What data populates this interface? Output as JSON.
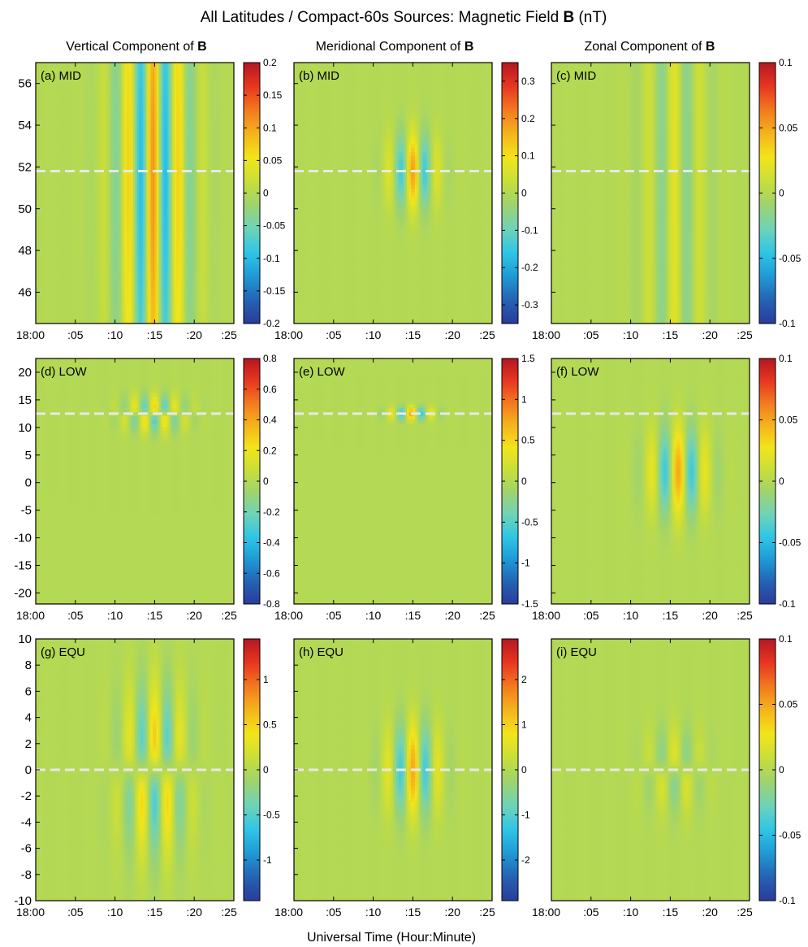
{
  "figure": {
    "title": "All Latitudes / Compact-60s Sources: Magnetic Field B (nT)",
    "title_parts": {
      "pre": "All Latitudes / Compact-60s Sources: Magnetic Field ",
      "bold": "B",
      "post": " (nT)"
    },
    "xlabel": "Universal Time (Hour:Minute)",
    "columns": [
      {
        "pre": "Vertical Component of ",
        "bold": "B"
      },
      {
        "pre": "Meridional Component of ",
        "bold": "B"
      },
      {
        "pre": "Zonal Component of ",
        "bold": "B"
      }
    ]
  },
  "colors": {
    "colormap": [
      "#2a3c9b",
      "#2463b5",
      "#1f9ad6",
      "#2fc6e6",
      "#6fd3b8",
      "#9ed36f",
      "#c9de3a",
      "#f2e51a",
      "#f5b41c",
      "#f27a1f",
      "#e8361f",
      "#b41722"
    ],
    "background": "#8fd17b",
    "dashed_line": "#e8e8e8"
  },
  "chart_data": [
    {
      "type": "heatmap",
      "panel": "(a) MID",
      "row": "MID",
      "component": "Vertical",
      "x_ticks": [
        "18:00",
        ":05",
        ":10",
        ":15",
        ":20",
        ":25"
      ],
      "xlim_min": [
        0,
        25
      ],
      "ylim": [
        44.5,
        57
      ],
      "y_ticks": [
        46,
        48,
        50,
        52,
        54,
        56
      ],
      "dashed_y": 51.8,
      "clim": [
        -0.2,
        0.2
      ],
      "cbar_ticks": [
        -0.2,
        -0.15,
        -0.1,
        -0.05,
        0,
        0.05,
        0.1,
        0.15,
        0.2
      ],
      "pattern": {
        "t_center": 14.8,
        "t_halfwidth": 5.5,
        "period_min": 3.2,
        "antisymmetric": false,
        "y_center": 51.8,
        "y_width": 14,
        "amplitude": 0.2
      }
    },
    {
      "type": "heatmap",
      "panel": "(b) MID",
      "row": "MID",
      "component": "Meridional",
      "x_ticks": [
        "18:00",
        ":05",
        ":10",
        ":15",
        ":20",
        ":25"
      ],
      "xlim_min": [
        0,
        25
      ],
      "ylim": [
        44.5,
        57
      ],
      "y_ticks": [
        46,
        48,
        50,
        52,
        54,
        56
      ],
      "dashed_y": 51.8,
      "clim": [
        -0.35,
        0.35
      ],
      "cbar_ticks": [
        -0.3,
        -0.2,
        -0.1,
        0,
        0.1,
        0.2,
        0.3
      ],
      "pattern": {
        "t_center": 15,
        "t_halfwidth": 3.5,
        "period_min": 3.2,
        "antisymmetric": false,
        "y_center": 51.8,
        "y_width": 1.8,
        "amplitude": 0.33
      }
    },
    {
      "type": "heatmap",
      "panel": "(c) MID",
      "row": "MID",
      "component": "Zonal",
      "x_ticks": [
        "18:00",
        ":05",
        ":10",
        ":15",
        ":20",
        ":25"
      ],
      "xlim_min": [
        0,
        25
      ],
      "ylim": [
        44.5,
        57
      ],
      "y_ticks": [
        46,
        48,
        50,
        52,
        54,
        56
      ],
      "dashed_y": 51.8,
      "clim": [
        -0.1,
        0.1
      ],
      "cbar_ticks": [
        -0.1,
        -0.05,
        0,
        0.05,
        0.1
      ],
      "pattern": {
        "t_center": 15.5,
        "t_halfwidth": 5,
        "period_min": 3.3,
        "antisymmetric": false,
        "y_center": 51.8,
        "y_width": 40,
        "amplitude": 0.035
      }
    },
    {
      "type": "heatmap",
      "panel": "(d) LOW",
      "row": "LOW",
      "component": "Vertical",
      "x_ticks": [
        "18:00",
        ":05",
        ":10",
        ":15",
        ":20",
        ":25"
      ],
      "xlim_min": [
        0,
        25
      ],
      "ylim": [
        -22,
        22.5
      ],
      "y_ticks": [
        -20,
        -15,
        -10,
        -5,
        0,
        5,
        10,
        15,
        20
      ],
      "dashed_y": 12.5,
      "clim": [
        -0.8,
        0.8
      ],
      "cbar_ticks": [
        -0.8,
        -0.6,
        -0.4,
        -0.2,
        0,
        0.2,
        0.4,
        0.6,
        0.8
      ],
      "pattern": {
        "t_center": 15,
        "t_halfwidth": 4.5,
        "period_min": 2.6,
        "antisymmetric": true,
        "y_center": 12.5,
        "y_width": 2.2,
        "amplitude": 0.7
      }
    },
    {
      "type": "heatmap",
      "panel": "(e) LOW",
      "row": "LOW",
      "component": "Meridional",
      "x_ticks": [
        "18:00",
        ":05",
        ":10",
        ":15",
        ":20",
        ":25"
      ],
      "xlim_min": [
        0,
        25
      ],
      "ylim": [
        -22,
        22.5
      ],
      "y_ticks": [
        -20,
        -15,
        -10,
        -5,
        0,
        5,
        10,
        15,
        20
      ],
      "dashed_y": 12.5,
      "clim": [
        -1.5,
        1.5
      ],
      "cbar_ticks": [
        -1.5,
        -1,
        -0.5,
        0,
        0.5,
        1,
        1.5
      ],
      "pattern": {
        "t_center": 14.8,
        "t_halfwidth": 3.5,
        "period_min": 2.6,
        "antisymmetric": false,
        "y_center": 12.5,
        "y_width": 1.2,
        "amplitude": 1.4
      }
    },
    {
      "type": "heatmap",
      "panel": "(f) LOW",
      "row": "LOW",
      "component": "Zonal",
      "x_ticks": [
        "18:00",
        ":05",
        ":10",
        ":15",
        ":20",
        ":25"
      ],
      "xlim_min": [
        0,
        25
      ],
      "ylim": [
        -22,
        22.5
      ],
      "y_ticks": [
        -20,
        -15,
        -10,
        -5,
        0,
        5,
        10,
        15,
        20
      ],
      "dashed_y": 12.5,
      "clim": [
        -0.1,
        0.1
      ],
      "cbar_ticks": [
        -0.1,
        -0.05,
        0,
        0.05,
        0.1
      ],
      "pattern": {
        "t_center": 16,
        "t_halfwidth": 4.5,
        "period_min": 3.5,
        "antisymmetric": false,
        "y_center": 2,
        "y_width": 8,
        "amplitude": 0.09
      }
    },
    {
      "type": "heatmap",
      "panel": "(g) EQU",
      "row": "EQU",
      "component": "Vertical",
      "x_ticks": [
        "18:00",
        ":05",
        ":10",
        ":15",
        ":20",
        ":25"
      ],
      "xlim_min": [
        0,
        25
      ],
      "ylim": [
        -10,
        10
      ],
      "y_ticks": [
        -10,
        -8,
        -6,
        -4,
        -2,
        0,
        2,
        4,
        6,
        8,
        10
      ],
      "dashed_y": 0,
      "clim": [
        -1.45,
        1.45
      ],
      "cbar_ticks": [
        -1,
        -0.5,
        0,
        0.5,
        1
      ],
      "pattern": {
        "t_center": 15,
        "t_halfwidth": 5,
        "period_min": 3.3,
        "antisymmetric": true,
        "y_center": 0,
        "y_width": 4.2,
        "amplitude": 1.35
      }
    },
    {
      "type": "heatmap",
      "panel": "(h) EQU",
      "row": "EQU",
      "component": "Meridional",
      "x_ticks": [
        "18:00",
        ":05",
        ":10",
        ":15",
        ":20",
        ":25"
      ],
      "xlim_min": [
        0,
        25
      ],
      "ylim": [
        -10,
        10
      ],
      "y_ticks": [
        -10,
        -8,
        -6,
        -4,
        -2,
        0,
        2,
        4,
        6,
        8,
        10
      ],
      "dashed_y": 0,
      "clim": [
        -2.9,
        2.9
      ],
      "cbar_ticks": [
        -2,
        -1,
        0,
        1,
        2
      ],
      "pattern": {
        "t_center": 15,
        "t_halfwidth": 4,
        "period_min": 3.3,
        "antisymmetric": false,
        "y_center": 0,
        "y_width": 3.5,
        "amplitude": 2.6
      }
    },
    {
      "type": "heatmap",
      "panel": "(i) EQU",
      "row": "EQU",
      "component": "Zonal",
      "x_ticks": [
        "18:00",
        ":05",
        ":10",
        ":15",
        ":20",
        ":25"
      ],
      "xlim_min": [
        0,
        25
      ],
      "ylim": [
        -10,
        10
      ],
      "y_ticks": [],
      "dashed_y": 0,
      "clim": [
        -0.1,
        0.1
      ],
      "cbar_ticks": [
        -0.1,
        -0.05,
        0,
        0.05,
        0.1
      ],
      "pattern": {
        "t_center": 15.5,
        "t_halfwidth": 4.5,
        "period_min": 3.3,
        "antisymmetric": true,
        "y_center": 0,
        "y_width": 2.2,
        "amplitude": 0.045
      }
    }
  ]
}
